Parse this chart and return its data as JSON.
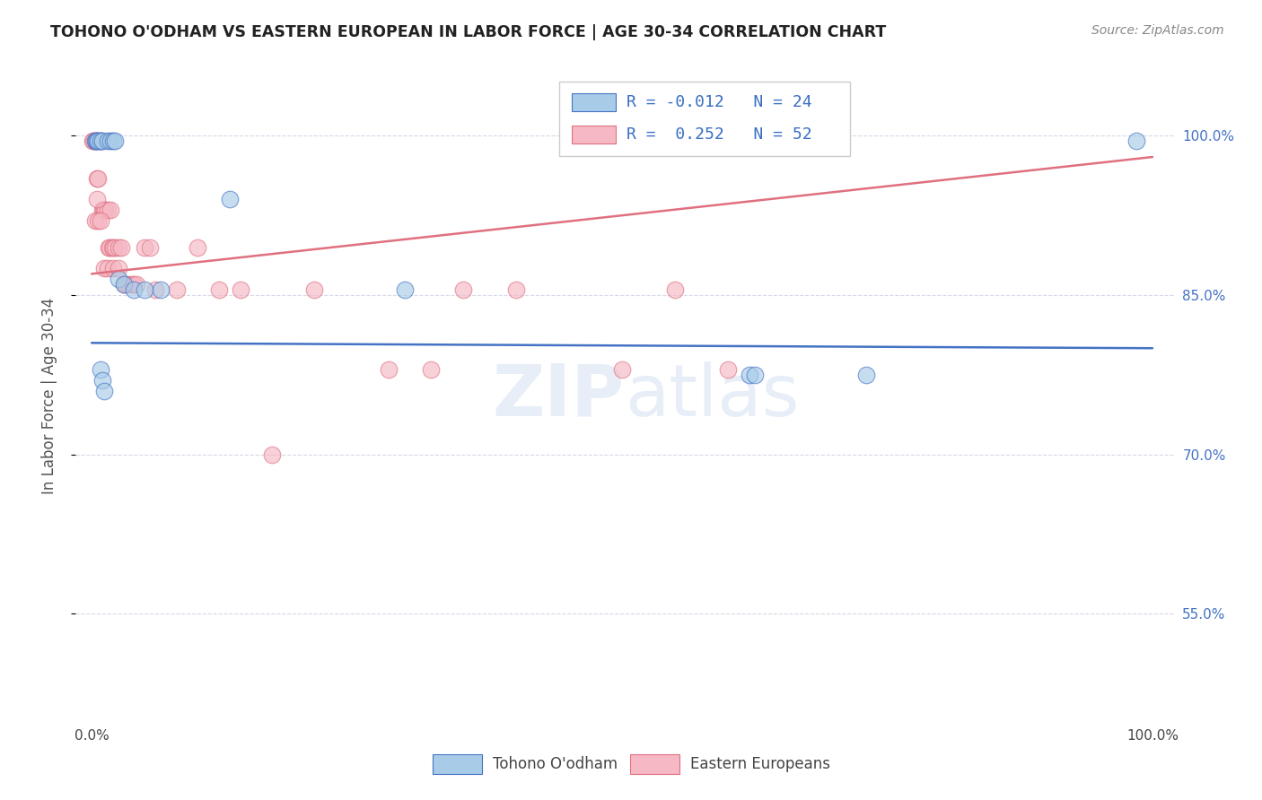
{
  "title": "TOHONO O'ODHAM VS EASTERN EUROPEAN IN LABOR FORCE | AGE 30-34 CORRELATION CHART",
  "source": "Source: ZipAtlas.com",
  "ylabel": "In Labor Force | Age 30-34",
  "legend_label1": "Tohono O'odham",
  "legend_label2": "Eastern Europeans",
  "blue_color": "#a8cce8",
  "pink_color": "#f5b8c4",
  "blue_line_color": "#4472c4",
  "pink_line_color": "#e07080",
  "blue_x": [
    0.003,
    0.004,
    0.005,
    0.006,
    0.008,
    0.01,
    0.015,
    0.018,
    0.02,
    0.022,
    0.025,
    0.03,
    0.04,
    0.05,
    0.065,
    0.13,
    0.295,
    0.62,
    0.625,
    0.73,
    0.985,
    0.008,
    0.01,
    0.012
  ],
  "blue_y": [
    0.995,
    0.995,
    0.995,
    0.995,
    0.995,
    0.995,
    0.995,
    0.995,
    0.995,
    0.995,
    0.865,
    0.86,
    0.855,
    0.855,
    0.855,
    0.94,
    0.855,
    0.775,
    0.775,
    0.775,
    0.995,
    0.78,
    0.77,
    0.76
  ],
  "pink_x": [
    0.001,
    0.002,
    0.003,
    0.004,
    0.005,
    0.006,
    0.007,
    0.008,
    0.009,
    0.01,
    0.011,
    0.012,
    0.013,
    0.015,
    0.016,
    0.017,
    0.018,
    0.019,
    0.02,
    0.022,
    0.025,
    0.028,
    0.03,
    0.032,
    0.035,
    0.038,
    0.04,
    0.042,
    0.05,
    0.055,
    0.06,
    0.08,
    0.1,
    0.12,
    0.14,
    0.17,
    0.21,
    0.28,
    0.32,
    0.35,
    0.4,
    0.5,
    0.55,
    0.6,
    0.003,
    0.005,
    0.006,
    0.008,
    0.012,
    0.015,
    0.02,
    0.025
  ],
  "pink_y": [
    0.995,
    0.995,
    0.995,
    0.995,
    0.96,
    0.96,
    0.995,
    0.995,
    0.995,
    0.93,
    0.93,
    0.93,
    0.93,
    0.93,
    0.895,
    0.895,
    0.93,
    0.895,
    0.895,
    0.895,
    0.895,
    0.895,
    0.86,
    0.86,
    0.86,
    0.86,
    0.86,
    0.86,
    0.895,
    0.895,
    0.855,
    0.855,
    0.895,
    0.855,
    0.855,
    0.7,
    0.855,
    0.78,
    0.78,
    0.855,
    0.855,
    0.78,
    0.855,
    0.78,
    0.92,
    0.94,
    0.92,
    0.92,
    0.875,
    0.875,
    0.875,
    0.875
  ],
  "xlim": [
    0.0,
    1.0
  ],
  "ylim": [
    0.45,
    1.05
  ],
  "yticks": [
    0.55,
    0.7,
    0.85,
    1.0
  ],
  "ytick_labels": [
    "55.0%",
    "70.0%",
    "85.0%",
    "100.0%"
  ],
  "xtick_labels": [
    "0.0%",
    "100.0%"
  ],
  "grid_color": "#d8d8e8",
  "background_color": "#ffffff",
  "watermark": "ZIPatlas",
  "blue_trend_y0": 0.805,
  "blue_trend_y1": 0.8,
  "pink_trend_y0": 0.87,
  "pink_trend_y1": 0.98
}
